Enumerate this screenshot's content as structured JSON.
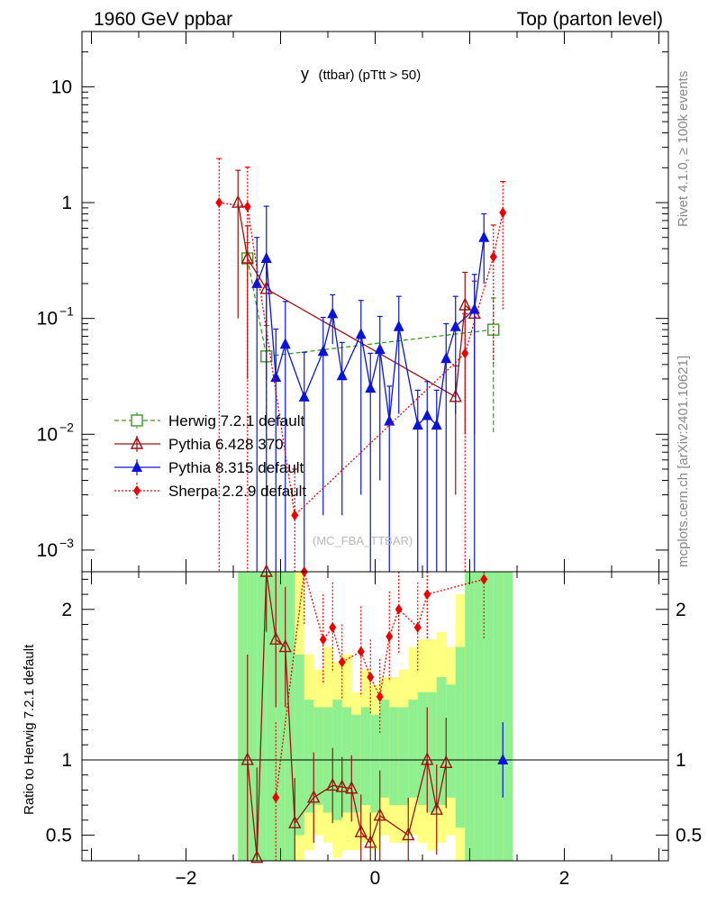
{
  "header": {
    "left_title": "1960 GeV ppbar",
    "right_title": "Top (parton level)"
  },
  "plot_title": {
    "main": "y",
    "sub": "(ttbar) (pTtt > 50)"
  },
  "watermark": "(MC_FBA_TTBAR)",
  "side_labels": {
    "rivet": "Rivet 4.1.0, ≥ 100k events",
    "mcplots": "mcplots.cern.ch [arXiv:2401.10621]"
  },
  "colors": {
    "herwig": "#3a9a1e",
    "pythia6": "#a01010",
    "pythia8": "#0a14d8",
    "sherpa": "#ee0000",
    "band_outer": "#ffff80",
    "band_inner": "#90f090"
  },
  "chart_data": [
    {
      "type": "line",
      "panel": "main",
      "yscale": "log",
      "xlim": [
        -3.1,
        3.1
      ],
      "ylim": [
        0.00065,
        30
      ],
      "xlabel": "",
      "ylabel": "",
      "yticks": [
        {
          "value": 10,
          "base": "10",
          "exp": ""
        },
        {
          "value": 1,
          "base": "1",
          "exp": ""
        },
        {
          "value": 0.1,
          "base": "10",
          "exp": "−1"
        },
        {
          "value": 0.01,
          "base": "10",
          "exp": "−2"
        },
        {
          "value": 0.001,
          "base": "10",
          "exp": "−3"
        }
      ],
      "legend": [
        {
          "key": "herwig",
          "label": "Herwig 7.2.1 default"
        },
        {
          "key": "pythia6",
          "label": "Pythia 6.428 370"
        },
        {
          "key": "pythia8",
          "label": "Pythia 8.315 default"
        },
        {
          "key": "sherpa",
          "label": "Sherpa 2.2.9 default"
        }
      ],
      "series": [
        {
          "key": "herwig",
          "name": "Herwig 7.2.1 default",
          "x": [
            -1.35,
            -1.15,
            1.25
          ],
          "y": [
            0.33,
            0.047,
            0.08
          ],
          "err": [
            0.12,
            0.04,
            0.07
          ]
        },
        {
          "key": "pythia6",
          "name": "Pythia 6.428 370",
          "x": [
            -1.45,
            -1.35,
            -1.15,
            0.85,
            0.95,
            1.05
          ],
          "y": [
            1.0,
            0.33,
            0.18,
            0.021,
            0.13,
            0.11
          ],
          "err": [
            0.9,
            0.3,
            0.15,
            0.018,
            0.12,
            0.1
          ]
        },
        {
          "key": "pythia8",
          "name": "Pythia 8.315 default",
          "x": [
            -1.25,
            -1.15,
            -1.05,
            -0.95,
            -0.75,
            -0.55,
            -0.45,
            -0.35,
            -0.15,
            -0.05,
            0.05,
            0.15,
            0.25,
            0.45,
            0.55,
            0.65,
            0.75,
            0.85,
            1.05,
            1.15
          ],
          "y": [
            0.2,
            0.33,
            0.031,
            0.06,
            0.021,
            0.052,
            0.11,
            0.032,
            0.073,
            0.025,
            0.054,
            0.013,
            0.085,
            0.012,
            0.0145,
            0.012,
            0.045,
            0.085,
            0.12,
            0.5
          ],
          "err": [
            0.3,
            0.6,
            0.05,
            0.08,
            0.03,
            0.05,
            0.05,
            0.03,
            0.07,
            0.025,
            0.05,
            0.013,
            0.07,
            0.012,
            0.014,
            0.012,
            0.045,
            0.07,
            0.12,
            0.3
          ]
        },
        {
          "key": "sherpa",
          "name": "Sherpa 2.2.9 default",
          "x": [
            -1.65,
            -1.35,
            -0.85,
            0.95,
            1.25,
            1.35
          ],
          "y": [
            1.0,
            0.92,
            0.002,
            0.05,
            0.34,
            0.82
          ],
          "err": [
            1.4,
            1.1,
            0.003,
            0.06,
            0.3,
            0.7
          ]
        }
      ]
    },
    {
      "type": "line",
      "panel": "ratio",
      "yscale": "linear",
      "xlim": [
        -3.1,
        3.1
      ],
      "ylim": [
        0.33,
        2.25
      ],
      "ylabel": "Ratio to Herwig 7.2.1 default",
      "yticks": [
        0.5,
        1,
        2
      ],
      "xticks": [
        -2,
        0,
        2
      ],
      "xtick_labels": [
        "−2",
        "0",
        "2"
      ],
      "reference_line": 1.0,
      "bands": {
        "edges": [
          -1.45,
          -1.35,
          -1.25,
          -1.15,
          -1.05,
          -0.95,
          -0.85,
          -0.75,
          -0.65,
          -0.55,
          -0.45,
          -0.35,
          -0.25,
          -0.15,
          -0.05,
          0.05,
          0.15,
          0.25,
          0.35,
          0.45,
          0.55,
          0.65,
          0.75,
          0.85,
          0.95,
          1.05,
          1.15,
          1.25,
          1.35,
          1.45
        ],
        "outer_lo": [
          0.33,
          0.33,
          0.33,
          0.33,
          0.33,
          0.33,
          0.33,
          0.4,
          0.5,
          0.45,
          0.35,
          0.4,
          0.4,
          0.45,
          0.4,
          0.5,
          0.45,
          0.45,
          0.5,
          0.45,
          0.4,
          0.45,
          0.5,
          0.33,
          0.33,
          0.33,
          0.33,
          0.33,
          0.33
        ],
        "outer_hi": [
          2.25,
          2.25,
          2.25,
          2.25,
          2.25,
          2.25,
          2.25,
          1.7,
          1.6,
          1.75,
          1.65,
          1.7,
          1.45,
          1.6,
          1.5,
          1.55,
          1.55,
          1.6,
          1.75,
          1.8,
          1.8,
          1.85,
          1.75,
          2.1,
          2.25,
          2.25,
          2.25,
          2.25,
          2.25
        ],
        "inner_lo": [
          0.33,
          0.33,
          0.33,
          0.33,
          0.33,
          0.33,
          0.5,
          0.65,
          0.7,
          0.65,
          0.6,
          0.65,
          0.65,
          0.7,
          0.65,
          0.75,
          0.7,
          0.7,
          0.75,
          0.7,
          0.65,
          0.7,
          0.75,
          0.55,
          0.33,
          0.33,
          0.33,
          0.33,
          0.33
        ],
        "inner_hi": [
          2.25,
          2.25,
          2.25,
          2.25,
          2.25,
          2.25,
          1.7,
          1.4,
          1.35,
          1.35,
          1.4,
          1.35,
          1.3,
          1.35,
          1.3,
          1.4,
          1.35,
          1.35,
          1.4,
          1.45,
          1.45,
          1.55,
          1.5,
          1.75,
          2.25,
          2.25,
          2.25,
          2.25,
          2.25
        ]
      },
      "series": [
        {
          "key": "pythia6",
          "x": [
            -1.35,
            -1.25,
            -1.15,
            -1.05,
            -0.95,
            -0.85,
            -0.65,
            -0.45,
            -0.35,
            -0.25,
            -0.15,
            -0.05,
            0.05,
            0.35,
            0.55,
            0.65,
            0.75
          ],
          "y": [
            1.0,
            0.35,
            2.25,
            1.8,
            1.75,
            0.58,
            0.75,
            0.83,
            0.82,
            0.81,
            0.52,
            0.45,
            0.63,
            0.5,
            1.0,
            0.67,
            0.98
          ],
          "err": [
            0.7,
            0.6,
            0.4,
            0.45,
            0.4,
            0.3,
            0.3,
            0.25,
            0.2,
            0.22,
            0.25,
            0.2,
            0.3,
            0.25,
            0.35,
            0.3,
            0.3
          ]
        },
        {
          "key": "pythia8",
          "x": [
            1.35
          ],
          "y": [
            1.0
          ],
          "err": [
            0.25
          ]
        },
        {
          "key": "sherpa",
          "x": [
            -1.05,
            -0.75,
            -0.55,
            -0.45,
            -0.35,
            -0.15,
            -0.05,
            0.05,
            0.15,
            0.25,
            0.45,
            0.55,
            1.15
          ],
          "y": [
            0.75,
            2.25,
            1.8,
            1.88,
            1.65,
            1.72,
            1.55,
            1.42,
            1.82,
            2.0,
            1.88,
            2.1,
            2.2
          ],
          "err": [
            0.5,
            0.35,
            0.3,
            0.3,
            0.25,
            0.3,
            0.25,
            0.25,
            0.3,
            0.3,
            0.3,
            0.3,
            0.4
          ]
        }
      ]
    }
  ]
}
